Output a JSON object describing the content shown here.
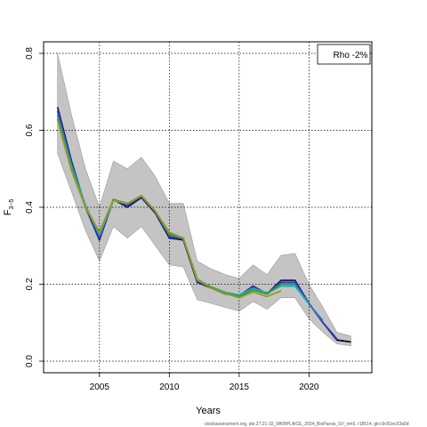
{
  "chart_data": {
    "type": "line",
    "xlabel": "Years",
    "ylabel_main": "F",
    "ylabel_sub": "3−5",
    "xlim": [
      2001,
      2024.5
    ],
    "ylim": [
      -0.03,
      0.83
    ],
    "xticks": [
      2005,
      2010,
      2015,
      2020
    ],
    "yticks": [
      0.0,
      0.2,
      0.4,
      0.6,
      0.8
    ],
    "ytick_labels": [
      "0.0",
      "0.2",
      "0.4",
      "0.6",
      "0.8"
    ],
    "grid": true,
    "legend": {
      "text": "Rho -2%",
      "position": "top-right"
    },
    "confidence_band": {
      "x": [
        2002,
        2003,
        2004,
        2005,
        2006,
        2007,
        2008,
        2009,
        2010,
        2011,
        2012,
        2013,
        2014,
        2015,
        2016,
        2017,
        2018,
        2019,
        2020,
        2021,
        2022,
        2023
      ],
      "upper": [
        0.8,
        0.64,
        0.5,
        0.4,
        0.52,
        0.5,
        0.53,
        0.48,
        0.41,
        0.41,
        0.26,
        0.24,
        0.225,
        0.215,
        0.25,
        0.225,
        0.275,
        0.28,
        0.2,
        0.14,
        0.075,
        0.065
      ],
      "lower": [
        0.54,
        0.44,
        0.34,
        0.26,
        0.35,
        0.32,
        0.35,
        0.3,
        0.25,
        0.245,
        0.16,
        0.15,
        0.14,
        0.13,
        0.155,
        0.135,
        0.165,
        0.165,
        0.11,
        0.075,
        0.045,
        0.04
      ]
    },
    "series": [
      {
        "color": "#1a1a6e",
        "x": [
          2002,
          2003,
          2004,
          2005,
          2006,
          2007,
          2008,
          2009,
          2010,
          2011,
          2012,
          2013,
          2014,
          2015,
          2016,
          2017,
          2018,
          2019,
          2020,
          2021,
          2022,
          2023
        ],
        "values": [
          0.66,
          0.52,
          0.4,
          0.315,
          0.42,
          0.4,
          0.425,
          0.385,
          0.32,
          0.315,
          0.205,
          0.19,
          0.175,
          0.17,
          0.195,
          0.175,
          0.21,
          0.21,
          0.15,
          0.1,
          0.055,
          0.05
        ]
      },
      {
        "color": "#3a3ab0",
        "x": [
          2002,
          2003,
          2004,
          2005,
          2006,
          2007,
          2008,
          2009,
          2010,
          2011,
          2012,
          2013,
          2014,
          2015,
          2016,
          2017,
          2018,
          2019,
          2020,
          2021,
          2022
        ],
        "values": [
          0.65,
          0.515,
          0.4,
          0.32,
          0.42,
          0.405,
          0.428,
          0.388,
          0.325,
          0.318,
          0.208,
          0.192,
          0.177,
          0.171,
          0.193,
          0.176,
          0.205,
          0.205,
          0.15,
          0.1,
          0.058
        ]
      },
      {
        "color": "#2a7ab8",
        "x": [
          2002,
          2003,
          2004,
          2005,
          2006,
          2007,
          2008,
          2009,
          2010,
          2011,
          2012,
          2013,
          2014,
          2015,
          2016,
          2017,
          2018,
          2019,
          2020,
          2021
        ],
        "values": [
          0.64,
          0.51,
          0.405,
          0.325,
          0.418,
          0.408,
          0.43,
          0.39,
          0.328,
          0.32,
          0.21,
          0.193,
          0.178,
          0.172,
          0.19,
          0.177,
          0.2,
          0.2,
          0.148,
          0.105
        ]
      },
      {
        "color": "#22b0c0",
        "x": [
          2002,
          2003,
          2004,
          2005,
          2006,
          2007,
          2008,
          2009,
          2010,
          2011,
          2012,
          2013,
          2014,
          2015,
          2016,
          2017,
          2018,
          2019,
          2020
        ],
        "values": [
          0.635,
          0.505,
          0.405,
          0.33,
          0.418,
          0.41,
          0.43,
          0.39,
          0.33,
          0.32,
          0.212,
          0.193,
          0.179,
          0.172,
          0.188,
          0.178,
          0.195,
          0.195,
          0.148
        ]
      },
      {
        "color": "#2e9a3e",
        "x": [
          2002,
          2003,
          2004,
          2005,
          2006,
          2007,
          2008,
          2009,
          2010,
          2011,
          2012,
          2013,
          2014,
          2015,
          2016,
          2017,
          2018,
          2019
        ],
        "values": [
          0.63,
          0.5,
          0.4,
          0.335,
          0.42,
          0.41,
          0.43,
          0.39,
          0.33,
          0.32,
          0.213,
          0.192,
          0.178,
          0.168,
          0.185,
          0.175,
          0.2,
          0.2
        ]
      },
      {
        "color": "#9a9a20",
        "x": [
          2002,
          2003,
          2004,
          2005,
          2006,
          2007,
          2008,
          2009,
          2010,
          2011,
          2012,
          2013,
          2014,
          2015,
          2016,
          2017,
          2018
        ],
        "values": [
          0.625,
          0.495,
          0.4,
          0.335,
          0.418,
          0.41,
          0.43,
          0.39,
          0.335,
          0.32,
          0.212,
          0.19,
          0.176,
          0.165,
          0.18,
          0.168,
          0.183
        ]
      },
      {
        "color": "#000000",
        "dashed": true,
        "x": [
          2022,
          2023
        ],
        "values": [
          0.055,
          0.05
        ]
      }
    ]
  },
  "footer": "stockassessment.org, ple.27.21-32_WKBPLAICE_2024_BioParsw_SV_nm0, r18514, git:c9c81ec53a0d"
}
